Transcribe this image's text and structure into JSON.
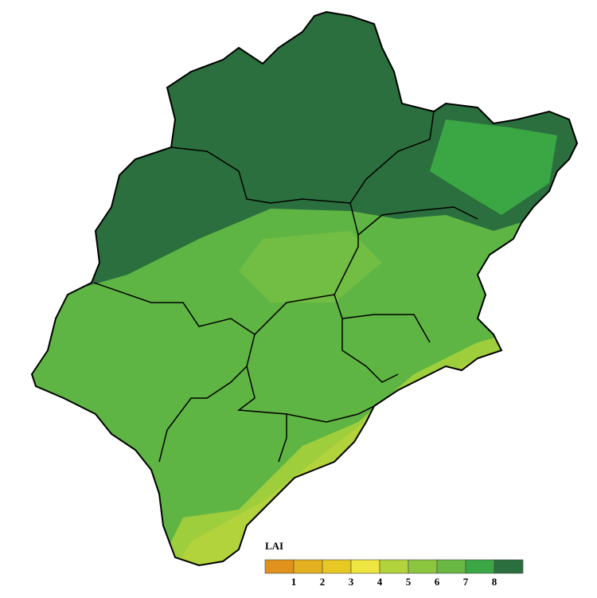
{
  "legend": {
    "title": "LAI",
    "ticks": [
      1,
      2,
      3,
      4,
      5,
      6,
      7,
      8
    ],
    "colors": [
      "#e0921c",
      "#e5b020",
      "#e8c823",
      "#eee640",
      "#b3d33c",
      "#8cc63f",
      "#68b843",
      "#3aa744",
      "#2b6f3e"
    ]
  }
}
